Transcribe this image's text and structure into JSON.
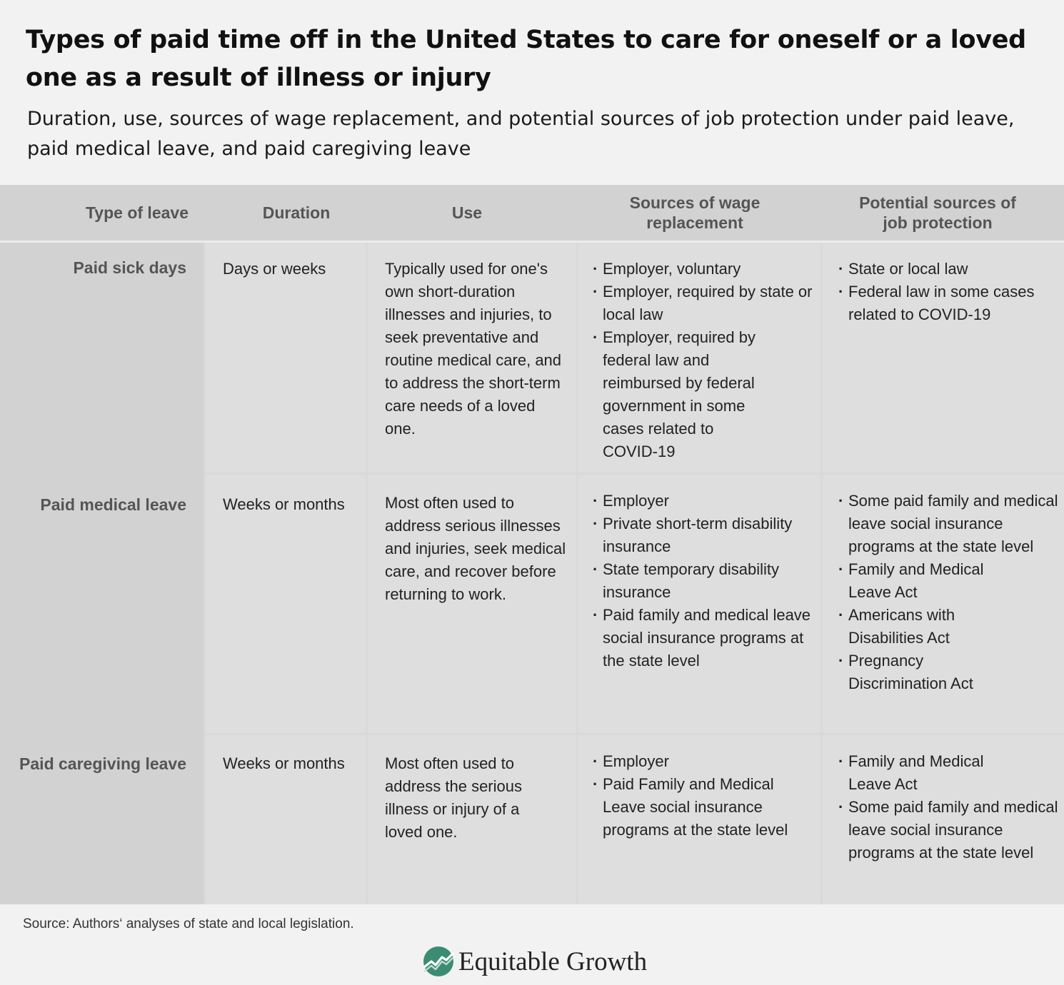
{
  "title": "Types of paid time off in the United States to care for oneself or a loved one as a result of illness or injury",
  "subtitle": "Duration, use, sources of wage replacement, and potential sources of job protection under paid leave, paid medical leave, and paid caregiving leave",
  "headers": {
    "type": "Type of leave",
    "duration": "Duration",
    "use": "Use",
    "wage": "Sources of wage replacement",
    "protection": "Potential sources of job protection"
  },
  "rows": [
    {
      "type": "Paid sick days",
      "duration": "Days or weeks",
      "use": "Typically used for one's own short-duration illnesses and injuries, to seek preventative and routine medical care, and to address the short-term care needs of a loved one.",
      "wage": [
        "Employer, voluntary",
        "Employer, required by state or local law",
        "Employer, required by federal law and reimbursed by federal government in some cases related to COVID-19"
      ],
      "protection": [
        "State or local law",
        "Federal law in some cases related to COVID-19"
      ]
    },
    {
      "type": "Paid medical leave",
      "duration": "Weeks or months",
      "use": "Most often used to address serious illnesses and injuries, seek medical care, and recover before returning to work.",
      "wage": [
        "Employer",
        "Private short-term disability insurance",
        "State temporary disability insurance",
        "Paid family and medical leave social insurance programs at the state level"
      ],
      "protection": [
        "Some paid family and medical leave social insurance programs at the state level",
        "Family and Medical Leave Act",
        "Americans with Disabilities Act",
        "Pregnancy Discrimination Act"
      ]
    },
    {
      "type": "Paid caregiving leave",
      "duration": "Weeks or months",
      "use": "Most often used to address the serious illness or injury of a loved one.",
      "wage": [
        "Employer",
        "Paid Family and Medical Leave social insurance programs at the state level"
      ],
      "protection": [
        "Family and Medical Leave Act",
        "Some paid family and medical leave social insurance programs at the state level"
      ]
    }
  ],
  "source": "Source: Authors‘ analyses of state and local legislation.",
  "logo": {
    "text": "Equitable Growth",
    "icon": "equitable-growth-logo-mark",
    "color": "#3c8c73"
  }
}
